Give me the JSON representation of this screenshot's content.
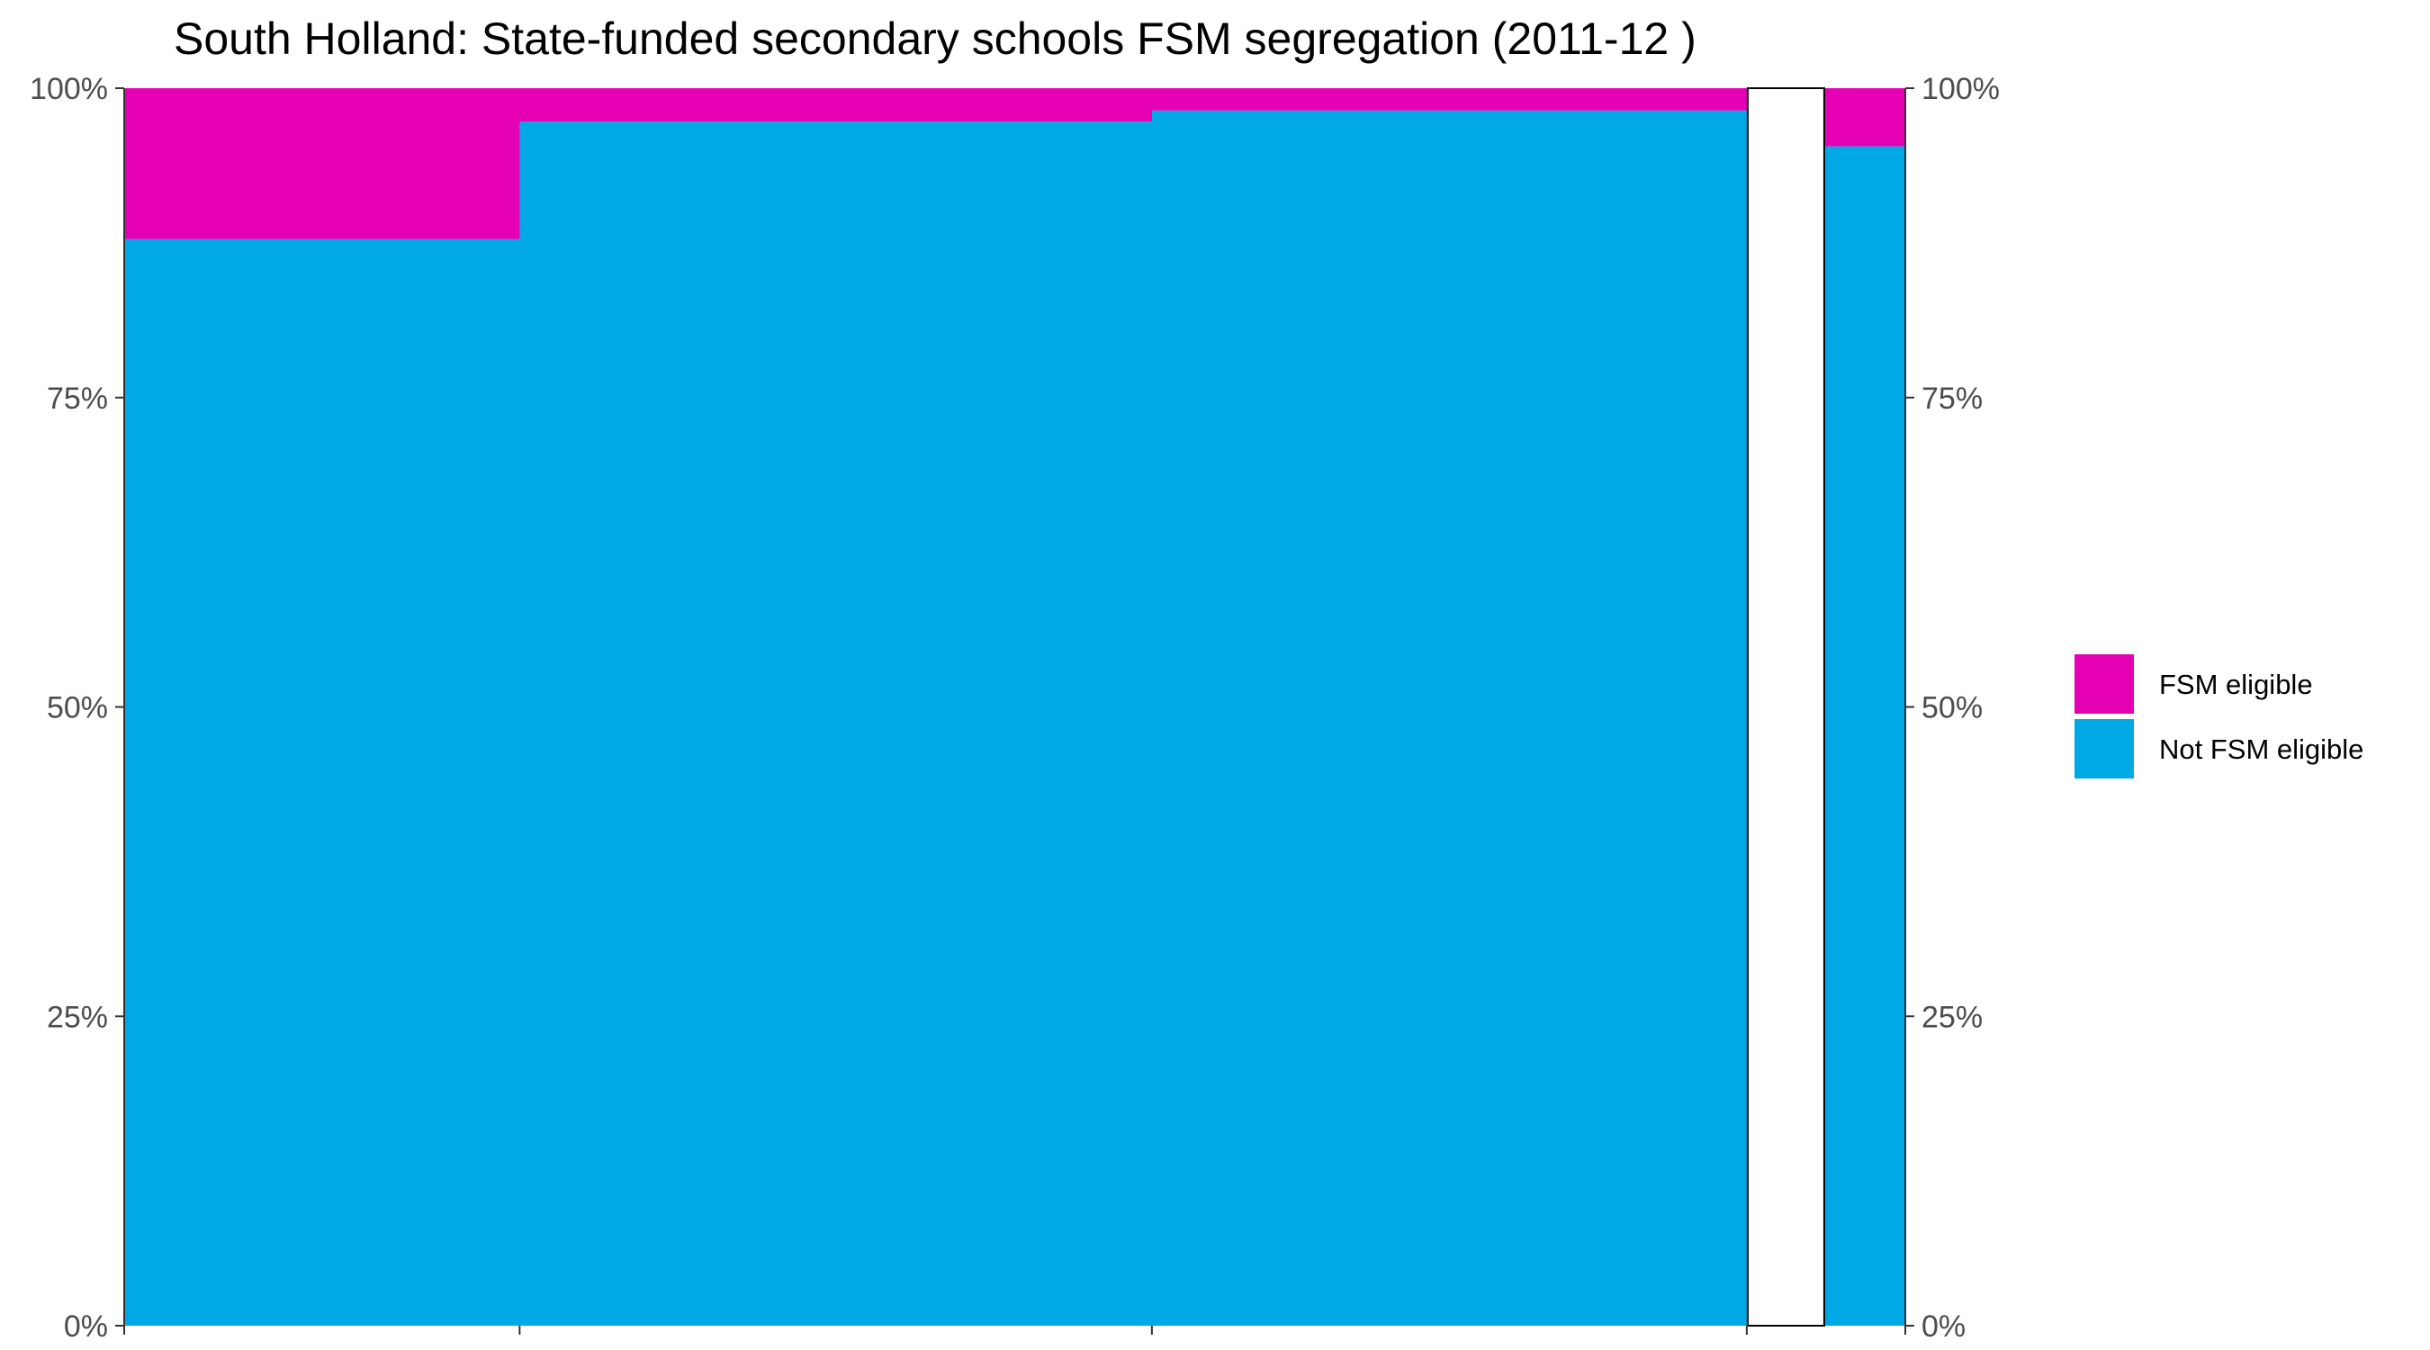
{
  "colors": {
    "fsm": "#E600B4",
    "not_fsm": "#00A8E6",
    "axis": "#333333",
    "empty_bar_fill": "#FFFFFF",
    "empty_bar_stroke": "#000000"
  },
  "chart_data": {
    "type": "bar",
    "subtype": "mosaic (variable-width stacked 100% bars)",
    "title": "South Holland: State-funded secondary schools FSM segregation (2011-12 )",
    "xlabel": "",
    "ylabel": "",
    "ylim": [
      0,
      100
    ],
    "y_ticks": [
      "0%",
      "25%",
      "50%",
      "75%",
      "100%"
    ],
    "y_axis_left": true,
    "y_axis_right": true,
    "grid": false,
    "legend_position": "right",
    "x_breaks": [
      0,
      22.2,
      57.7,
      91.1,
      95.5,
      100
    ],
    "x_tick_breaks": [
      0,
      22.2,
      57.7,
      91.1,
      100
    ],
    "series": [
      {
        "name": "FSM eligible",
        "color_key": "fsm",
        "values": [
          12.2,
          2.7,
          1.8,
          0,
          4.7
        ]
      },
      {
        "name": "Not FSM eligible",
        "color_key": "not_fsm",
        "values": [
          87.8,
          97.3,
          98.2,
          0,
          95.3
        ]
      }
    ],
    "empty_columns": [
      3
    ]
  }
}
